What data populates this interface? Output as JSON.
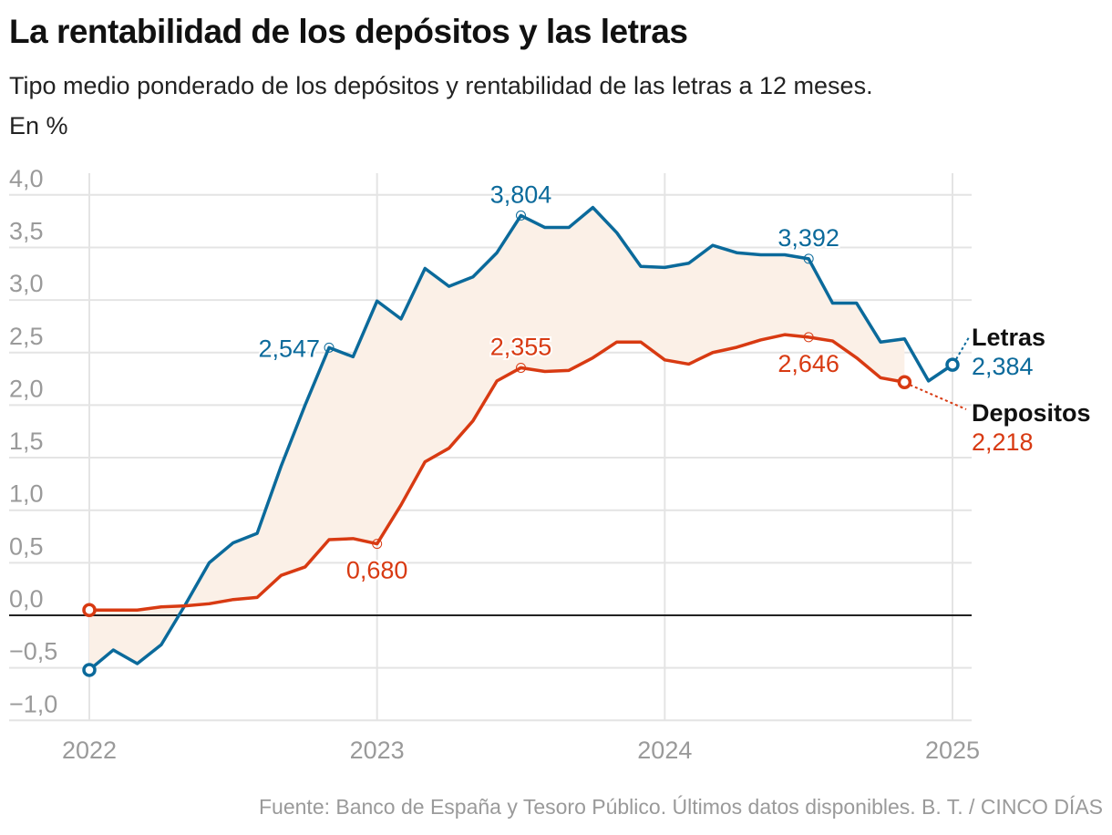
{
  "header": {
    "title": "La rentabilidad de los depósitos y las letras",
    "subtitle": "Tipo medio ponderado de los depósitos y rentabilidad de las letras a 12 meses.",
    "unit": "En %"
  },
  "footer": {
    "source": "Fuente: Banco de España y Tesoro Público. Últimos datos disponibles. B. T. / CINCO DÍAS"
  },
  "colors": {
    "letras": "#0b6a9b",
    "depositos": "#d83a12",
    "fill": "#fbf0e7",
    "grid": "#e4e4e4",
    "zero": "#222222"
  },
  "chart_data": {
    "type": "line",
    "title": "La rentabilidad de los depósitos y las letras",
    "xlabel": "",
    "ylabel": "%",
    "ylim": [
      -1.0,
      4.0
    ],
    "yticks": [
      4.0,
      3.5,
      3.0,
      2.5,
      2.0,
      1.5,
      1.0,
      0.5,
      0.0,
      -0.5,
      -1.0
    ],
    "ytick_labels": [
      "4,0",
      "3,5",
      "3,0",
      "2,5",
      "2,0",
      "1,5",
      "1,0",
      "0,5",
      "0,0",
      "−0,5",
      "−1,0"
    ],
    "xticks": [
      "2022",
      "2023",
      "2024",
      "2025"
    ],
    "x_start": "2022-01",
    "grid": true,
    "legend": "right (direct labels)",
    "series": [
      {
        "name": "Letras",
        "key": "letras",
        "last_label": "2,384",
        "values": [
          -0.52,
          -0.33,
          -0.46,
          -0.28,
          0.1,
          0.5,
          0.69,
          0.78,
          1.42,
          2.0,
          2.547,
          2.46,
          2.99,
          2.82,
          3.3,
          3.13,
          3.22,
          3.45,
          3.804,
          3.69,
          3.69,
          3.88,
          3.64,
          3.32,
          3.31,
          3.35,
          3.52,
          3.45,
          3.43,
          3.43,
          3.392,
          2.97,
          2.97,
          2.6,
          2.63,
          2.23,
          2.384
        ]
      },
      {
        "name": "Depositos",
        "key": "depositos",
        "last_label": "2,218",
        "values": [
          0.05,
          0.05,
          0.05,
          0.08,
          0.09,
          0.11,
          0.15,
          0.17,
          0.38,
          0.46,
          0.72,
          0.73,
          0.68,
          1.05,
          1.46,
          1.59,
          1.85,
          2.23,
          2.355,
          2.32,
          2.33,
          2.45,
          2.6,
          2.6,
          2.43,
          2.39,
          2.5,
          2.55,
          2.62,
          2.67,
          2.646,
          2.61,
          2.45,
          2.26,
          2.218
        ]
      }
    ],
    "annotations": [
      {
        "series": "letras",
        "index": 10,
        "label": "2,547",
        "pos": "left"
      },
      {
        "series": "letras",
        "index": 18,
        "label": "3,804",
        "pos": "above"
      },
      {
        "series": "letras",
        "index": 30,
        "label": "3,392",
        "pos": "above"
      },
      {
        "series": "depositos",
        "index": 12,
        "label": "0,680",
        "pos": "below"
      },
      {
        "series": "depositos",
        "index": 18,
        "label": "2,355",
        "pos": "above"
      },
      {
        "series": "depositos",
        "index": 30,
        "label": "2,646",
        "pos": "below"
      }
    ]
  }
}
